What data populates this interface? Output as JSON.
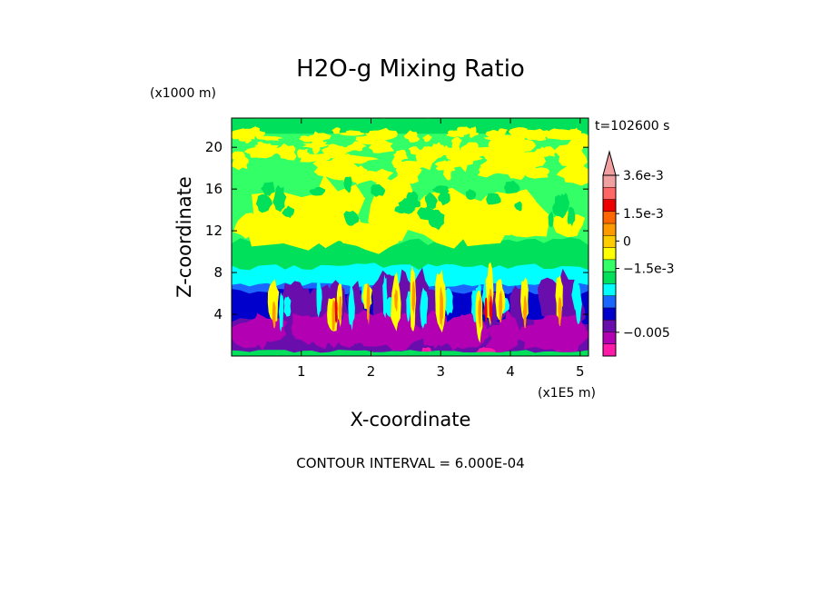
{
  "chart_data": {
    "type": "heatmap",
    "title": "H2O-g Mixing Ratio",
    "xlabel": "X-coordinate",
    "ylabel": "Z-coordinate",
    "x_scale_note": "(x1E5 m)",
    "y_scale_note": "(x1000 m)",
    "x_ticks": [
      1,
      2,
      3,
      4,
      5
    ],
    "x_tick_labels": [
      "1",
      "2",
      "3",
      "4",
      "5"
    ],
    "y_ticks": [
      4,
      8,
      12,
      16,
      20
    ],
    "y_tick_labels": [
      "4",
      "8",
      "12",
      "16",
      "20"
    ],
    "xlim": [
      0,
      5.12
    ],
    "ylim": [
      0,
      22.8
    ],
    "time_label": "t=102600 s",
    "contour_interval_text": "CONTOUR INTERVAL = 6.000E-04",
    "colorbar": {
      "colors": [
        "#ff1aa8",
        "#b300b3",
        "#6a0dad",
        "#0000cc",
        "#1a66ff",
        "#00ffff",
        "#00e05a",
        "#33ff66",
        "#ffff00",
        "#ffcc00",
        "#ff9900",
        "#ff6600",
        "#ee0000",
        "#ff6666",
        "#f0a0a0"
      ],
      "labels": [
        {
          "text": "3.6e-3",
          "value": 0.0036
        },
        {
          "text": "1.5e-3",
          "value": 0.0015
        },
        {
          "text": "0",
          "value": 0
        },
        {
          "text": "−1.5e-3",
          "value": -0.0015
        },
        {
          "text": "−0.005",
          "value": -0.005
        }
      ]
    },
    "colors": {
      "background": "#33ff66",
      "green_dark": "#00e05a",
      "yellow": "#ffff00",
      "cyan": "#00ffff",
      "blue_light": "#1a66ff",
      "blue": "#0000cc",
      "purple": "#6a0dad",
      "magenta": "#b300b3",
      "pink": "#ff1aa8",
      "orange": "#ff9900",
      "red": "#ee0000"
    }
  }
}
